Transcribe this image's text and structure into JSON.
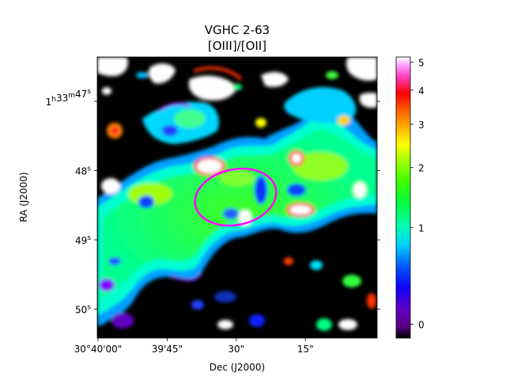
{
  "chart_data": {
    "type": "heatmap",
    "title": "VGHC 2-63",
    "subtitle": "[OIII]/[OII]",
    "xlabel": "Dec (J2000)",
    "ylabel": "RA (J2000)",
    "x_ticks": [
      "30°40'00\"",
      "39'45\"",
      "30\"",
      "15\""
    ],
    "y_ticks": [
      {
        "hours": "1",
        "h": "h",
        "minutes": "33",
        "m": "m",
        "seconds": "47",
        "s": "s"
      },
      {
        "seconds": "48",
        "s": "s"
      },
      {
        "seconds": "49",
        "s": "s"
      },
      {
        "seconds": "50",
        "s": "s"
      }
    ],
    "colorbar": {
      "ticks": [
        {
          "label": "5",
          "value": 5
        },
        {
          "label": "4",
          "value": 4
        },
        {
          "label": "3",
          "value": 3
        },
        {
          "label": "2",
          "value": 2
        },
        {
          "label": "1",
          "value": 1
        },
        {
          "label": "0",
          "value": 0
        }
      ],
      "range": [
        -0.1,
        5.2
      ],
      "scale": "nonlinear (stretched)",
      "colormap": "gist_ncar-like: black, purple, blue, cyan, green, yellow, orange, red, pink, white"
    },
    "masked_color": "#000000",
    "unmeasured_color": "#ffffff",
    "annotations": [
      {
        "kind": "ellipse",
        "color": "#ff00ff"
      }
    ],
    "grid": false
  }
}
